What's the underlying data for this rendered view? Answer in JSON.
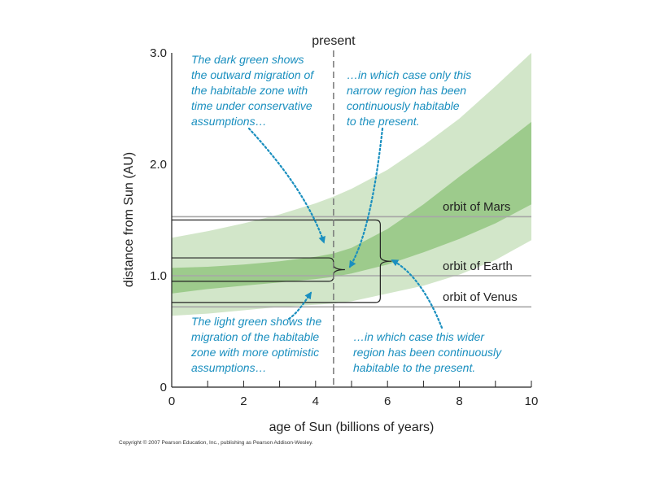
{
  "chart_data": {
    "type": "area",
    "xlabel": "age of Sun (billions of years)",
    "ylabel": "distance from Sun (AU)",
    "xlim": [
      0,
      10
    ],
    "ylim": [
      0,
      3.0
    ],
    "x_ticks": [
      0,
      2,
      4,
      6,
      8,
      10
    ],
    "x_tick_labels": [
      "0",
      "2",
      "4",
      "6",
      "8",
      "10"
    ],
    "y_ticks": [
      0,
      1.0,
      2.0,
      3.0
    ],
    "y_tick_labels": [
      "0",
      "1.0",
      "2.0",
      "3.0"
    ],
    "present": {
      "x": 4.5,
      "label": "present"
    },
    "bands": [
      {
        "kind": "optimistic habitable zone",
        "color": "#d2e6c9",
        "x": [
          0,
          1,
          2,
          3,
          4,
          4.5,
          5,
          6,
          7,
          8,
          9,
          10
        ],
        "lower": [
          0.64,
          0.66,
          0.69,
          0.72,
          0.74,
          0.75,
          0.77,
          0.84,
          0.91,
          1.01,
          1.14,
          1.32
        ],
        "upper": [
          1.34,
          1.4,
          1.47,
          1.55,
          1.65,
          1.71,
          1.78,
          1.95,
          2.17,
          2.41,
          2.7,
          3.0
        ]
      },
      {
        "kind": "conservative habitable zone",
        "color": "#9dcb8c",
        "x": [
          0,
          1,
          2,
          3,
          4,
          4.5,
          5,
          6,
          7,
          8,
          9,
          10
        ],
        "lower": [
          0.84,
          0.88,
          0.91,
          0.94,
          0.97,
          0.99,
          1.02,
          1.1,
          1.21,
          1.33,
          1.47,
          1.64
        ],
        "upper": [
          1.07,
          1.08,
          1.1,
          1.13,
          1.17,
          1.2,
          1.25,
          1.42,
          1.64,
          1.89,
          2.13,
          2.38
        ]
      }
    ],
    "orbits": [
      {
        "label": "orbit of Mars",
        "y": 1.53
      },
      {
        "label": "orbit of Earth",
        "y": 1.0
      },
      {
        "label": "orbit of Venus",
        "y": 0.72
      }
    ],
    "brackets": [
      {
        "kind": "narrow region",
        "x": [
          0,
          4.5
        ],
        "y": [
          0.95,
          1.16
        ]
      },
      {
        "kind": "wider region",
        "x": [
          0,
          5.8
        ],
        "y": [
          0.76,
          1.5
        ]
      }
    ],
    "annotations": [
      {
        "lines": [
          "The dark green shows",
          "the outward migration of",
          "the habitable zone with",
          "time under conservative",
          "assumptions…"
        ]
      },
      {
        "lines": [
          "…in which case only this",
          "narrow region has been",
          "continuously habitable",
          "to the present."
        ]
      },
      {
        "lines": [
          "The light green shows the",
          "migration of the habitable",
          "zone with more optimistic",
          "assumptions…"
        ]
      },
      {
        "lines": [
          "…in which case this wider",
          "region has been continuously",
          "habitable to the present."
        ]
      }
    ],
    "annotation_color": "#1a8fbf"
  },
  "copyright": "Copyright © 2007 Pearson Education, Inc., publishing as Pearson Addison-Wesley."
}
